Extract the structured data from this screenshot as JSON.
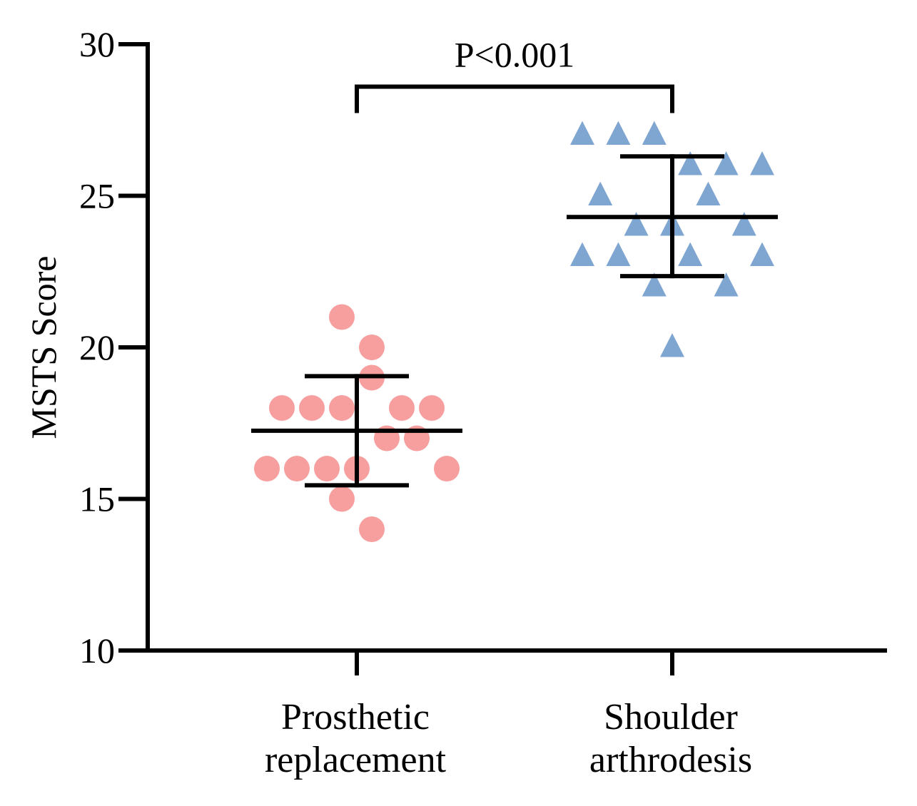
{
  "chart_data": {
    "type": "scatter",
    "ylabel": "MSTS Score",
    "ylim": [
      10,
      30
    ],
    "yticks": [
      10,
      15,
      20,
      25,
      30
    ],
    "grid": false,
    "categories": [
      {
        "line1": "Prosthetic",
        "line2": "replacement"
      },
      {
        "line1": "Shoulder",
        "line2": "arthrodesis"
      }
    ],
    "series": [
      {
        "marker": "circle",
        "color": "#F79E9E",
        "category_index": 0,
        "points": [
          {
            "y": 21,
            "offset": -0.5
          },
          {
            "y": 20,
            "offset": 0.5
          },
          {
            "y": 19,
            "offset": 0.5
          },
          {
            "y": 18,
            "offset": -2.5
          },
          {
            "y": 18,
            "offset": -1.5
          },
          {
            "y": 18,
            "offset": -0.5
          },
          {
            "y": 18,
            "offset": 1.5
          },
          {
            "y": 18,
            "offset": 2.5
          },
          {
            "y": 17,
            "offset": 1.0
          },
          {
            "y": 17,
            "offset": 2.0
          },
          {
            "y": 16,
            "offset": -3.0
          },
          {
            "y": 16,
            "offset": -2.0
          },
          {
            "y": 16,
            "offset": -1.0
          },
          {
            "y": 16,
            "offset": 0.0
          },
          {
            "y": 16,
            "offset": 3.0
          },
          {
            "y": 15,
            "offset": -0.5
          },
          {
            "y": 14,
            "offset": 0.5
          }
        ],
        "mean": 17.25,
        "sd_low": 15.45,
        "sd_high": 19.05
      },
      {
        "marker": "triangle",
        "color": "#7FA6D1",
        "category_index": 1,
        "points": [
          {
            "y": 27,
            "offset": -3.0
          },
          {
            "y": 27,
            "offset": -1.8
          },
          {
            "y": 27,
            "offset": -0.6
          },
          {
            "y": 26,
            "offset": 0.6
          },
          {
            "y": 26,
            "offset": 1.8
          },
          {
            "y": 26,
            "offset": 3.0
          },
          {
            "y": 25,
            "offset": -2.4
          },
          {
            "y": 25,
            "offset": 1.2
          },
          {
            "y": 24,
            "offset": -1.2
          },
          {
            "y": 24,
            "offset": 0.0
          },
          {
            "y": 24,
            "offset": 2.4
          },
          {
            "y": 23,
            "offset": -3.0
          },
          {
            "y": 23,
            "offset": -1.8
          },
          {
            "y": 23,
            "offset": 0.6
          },
          {
            "y": 23,
            "offset": 3.0
          },
          {
            "y": 22,
            "offset": -0.6
          },
          {
            "y": 22,
            "offset": 1.8
          },
          {
            "y": 20,
            "offset": 0.0
          }
        ],
        "mean": 24.3,
        "sd_low": 22.35,
        "sd_high": 26.3
      }
    ],
    "significance": {
      "label": "P<0.001",
      "y": 28.6,
      "drop_to": 27.8,
      "between": [
        0,
        1
      ]
    }
  }
}
